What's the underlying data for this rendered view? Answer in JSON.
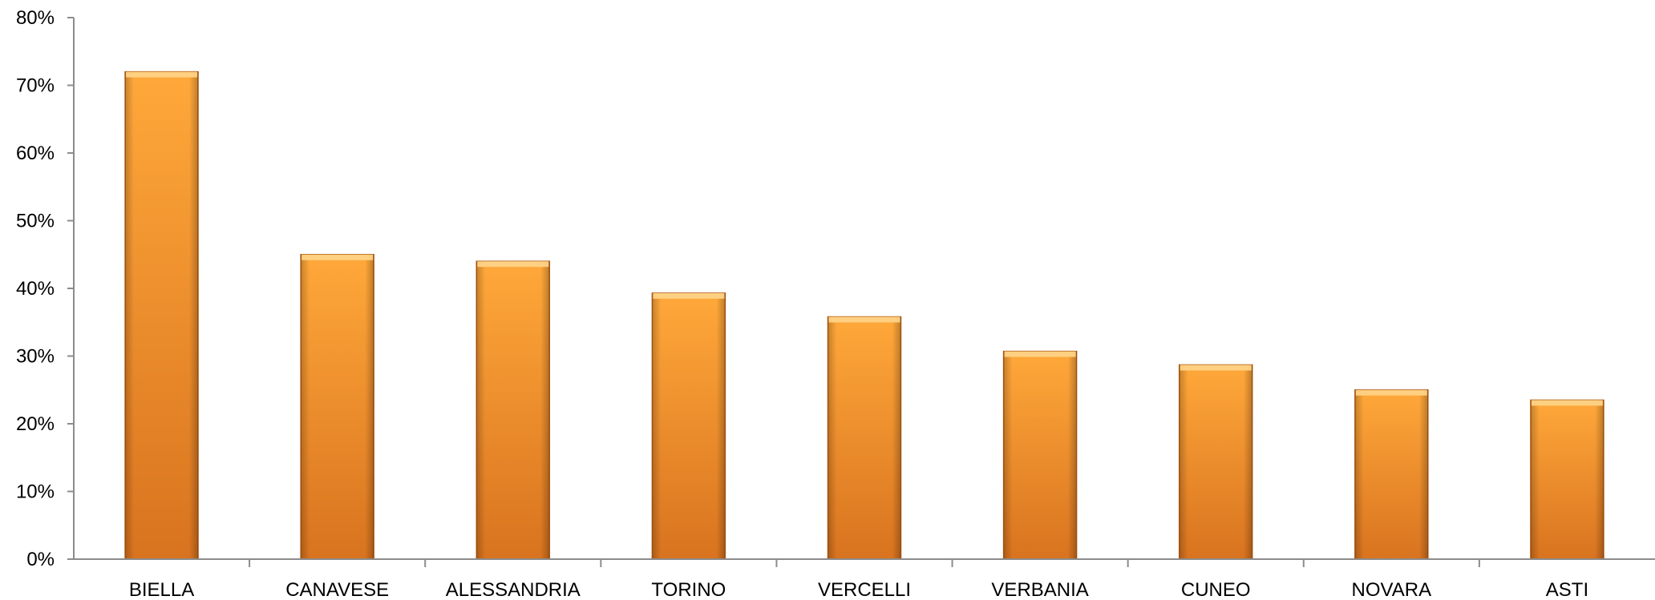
{
  "chart_data": {
    "type": "bar",
    "title": "",
    "xlabel": "",
    "ylabel": "",
    "categories": [
      "BIELLA",
      "CANAVESE",
      "ALESSANDRIA",
      "TORINO",
      "VERCELLI",
      "VERBANIA",
      "CUNEO",
      "NOVARA",
      "ASTI"
    ],
    "values": [
      72,
      45,
      44,
      39.3,
      35.8,
      30.7,
      28.7,
      25,
      23.5
    ],
    "ylim": [
      0,
      80
    ],
    "yticks": [
      0,
      10,
      20,
      30,
      40,
      50,
      60,
      70,
      80
    ],
    "ytick_labels": [
      "0%",
      "10%",
      "20%",
      "30%",
      "40%",
      "50%",
      "60%",
      "70%",
      "80%"
    ],
    "value_format": "percent",
    "grid": false,
    "legend": "none",
    "colors": {
      "bar_light": "#ffa83a",
      "bar_mid": "#f5922a",
      "bar_dark": "#d8731f",
      "bar_edge": "#b35d14",
      "bar_cap": "#ffd58a",
      "axis": "#8c8c8c",
      "text": "#000000"
    }
  }
}
